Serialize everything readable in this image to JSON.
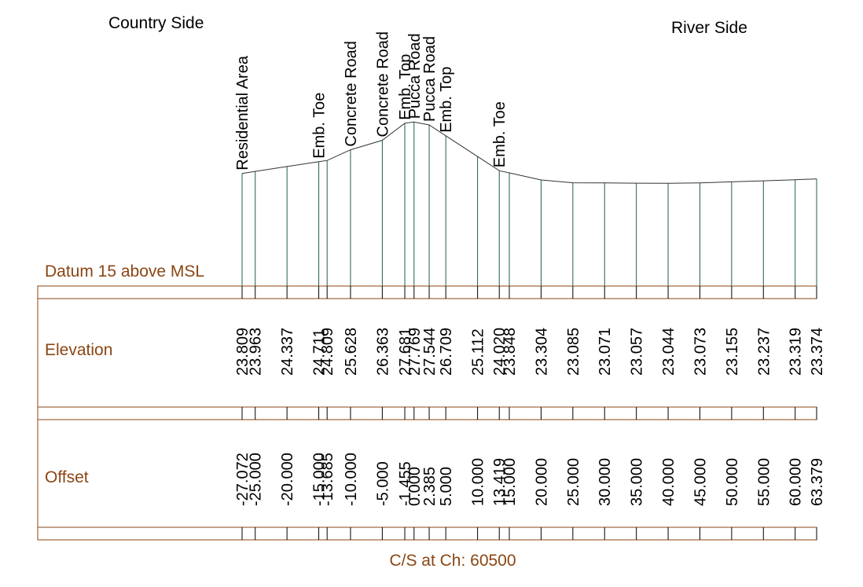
{
  "labels": {
    "left_side": "Country Side",
    "right_side": "River Side",
    "datum": "Datum 15 above MSL",
    "elevation_row": "Elevation",
    "offset_row": "Offset",
    "caption": "C/S at Ch: 60500"
  },
  "colors": {
    "band": "#8B4513",
    "band_text": "#8B4513",
    "station_line": "#1f5f4f",
    "profile_line": "#333333",
    "text": "#000000"
  },
  "chart_data": {
    "type": "line",
    "title": "C/S at Ch: 60500",
    "xlabel": "Offset",
    "ylabel": "Elevation",
    "datum": 15,
    "points": [
      {
        "offset": "-27.072",
        "elevation": "23.809",
        "x": -27.072,
        "y": 23.809,
        "feature": "Residential Area"
      },
      {
        "offset": "-25.000",
        "elevation": "23.963",
        "x": -25.0,
        "y": 23.963,
        "feature": ""
      },
      {
        "offset": "-20.000",
        "elevation": "24.337",
        "x": -20.0,
        "y": 24.337,
        "feature": ""
      },
      {
        "offset": "-15.000",
        "elevation": "24.711",
        "x": -15.0,
        "y": 24.711,
        "feature": "Emb. Toe"
      },
      {
        "offset": "-13.685",
        "elevation": "24.809",
        "x": -13.685,
        "y": 24.809,
        "feature": ""
      },
      {
        "offset": "-10.000",
        "elevation": "25.628",
        "x": -10.0,
        "y": 25.628,
        "feature": "Concrete Road"
      },
      {
        "offset": "-5.000",
        "elevation": "26.363",
        "x": -5.0,
        "y": 26.363,
        "feature": "Concrete Road"
      },
      {
        "offset": "-1.455",
        "elevation": "27.681",
        "x": -1.455,
        "y": 27.681,
        "feature": "Emb. Top"
      },
      {
        "offset": "0.000",
        "elevation": "27.769",
        "x": 0.0,
        "y": 27.769,
        "feature": "Pucca Road"
      },
      {
        "offset": "2.385",
        "elevation": "27.544",
        "x": 2.385,
        "y": 27.544,
        "feature": "Pucca Road"
      },
      {
        "offset": "5.000",
        "elevation": "26.709",
        "x": 5.0,
        "y": 26.709,
        "feature": "Emb. Top"
      },
      {
        "offset": "10.000",
        "elevation": "25.112",
        "x": 10.0,
        "y": 25.112,
        "feature": ""
      },
      {
        "offset": "13.419",
        "elevation": "24.020",
        "x": 13.419,
        "y": 24.02,
        "feature": "Emb. Toe"
      },
      {
        "offset": "15.000",
        "elevation": "23.848",
        "x": 15.0,
        "y": 23.848,
        "feature": ""
      },
      {
        "offset": "20.000",
        "elevation": "23.304",
        "x": 20.0,
        "y": 23.304,
        "feature": ""
      },
      {
        "offset": "25.000",
        "elevation": "23.085",
        "x": 25.0,
        "y": 23.085,
        "feature": ""
      },
      {
        "offset": "30.000",
        "elevation": "23.071",
        "x": 30.0,
        "y": 23.071,
        "feature": ""
      },
      {
        "offset": "35.000",
        "elevation": "23.057",
        "x": 35.0,
        "y": 23.057,
        "feature": ""
      },
      {
        "offset": "40.000",
        "elevation": "23.044",
        "x": 40.0,
        "y": 23.044,
        "feature": ""
      },
      {
        "offset": "45.000",
        "elevation": "23.073",
        "x": 45.0,
        "y": 23.073,
        "feature": ""
      },
      {
        "offset": "50.000",
        "elevation": "23.155",
        "x": 50.0,
        "y": 23.155,
        "feature": ""
      },
      {
        "offset": "55.000",
        "elevation": "23.237",
        "x": 55.0,
        "y": 23.237,
        "feature": ""
      },
      {
        "offset": "60.000",
        "elevation": "23.319",
        "x": 60.0,
        "y": 23.319,
        "feature": ""
      },
      {
        "offset": "63.379",
        "elevation": "23.374",
        "x": 63.379,
        "y": 23.374,
        "feature": ""
      }
    ]
  }
}
